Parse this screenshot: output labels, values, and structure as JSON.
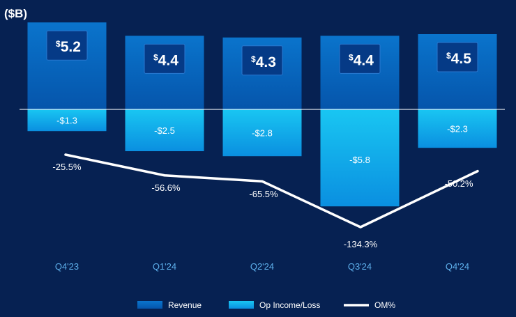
{
  "chart_data": {
    "type": "bar",
    "unit_label": "($B)",
    "categories": [
      "Q4'23",
      "Q1'24",
      "Q2'24",
      "Q3'24",
      "Q4'24"
    ],
    "series": [
      {
        "name": "Revenue",
        "values": [
          5.2,
          4.4,
          4.3,
          4.4,
          4.5
        ],
        "labels": [
          "5.2",
          "4.4",
          "4.3",
          "4.4",
          "4.5"
        ]
      },
      {
        "name": "Op Income/Loss",
        "values": [
          -1.3,
          -2.5,
          -2.8,
          -5.8,
          -2.3
        ],
        "labels": [
          "-$1.3",
          "-$2.5",
          "-$2.8",
          "-$5.8",
          "-$2.3"
        ]
      },
      {
        "name": "OM%",
        "type": "line",
        "values": [
          -25.5,
          -56.6,
          -65.5,
          -134.3,
          -50.2
        ],
        "labels": [
          "-25.5%",
          "-56.6%",
          "-65.5%",
          "-134.3%",
          "-50.2%"
        ]
      }
    ],
    "currency_symbol": "$",
    "legend": [
      "Revenue",
      "Op Income/Loss",
      "OM%"
    ],
    "legend_position": "bottom"
  },
  "colors": {
    "background": "#062152",
    "revenue_top": "#0a74cc",
    "revenue_bottom": "#0555ab",
    "opinc_top": "#19c6f2",
    "opinc_bottom": "#0a8fe0",
    "badge": "#053a86",
    "line": "#ffffff",
    "category_text": "#5eb0ec",
    "text": "#ffffff"
  }
}
